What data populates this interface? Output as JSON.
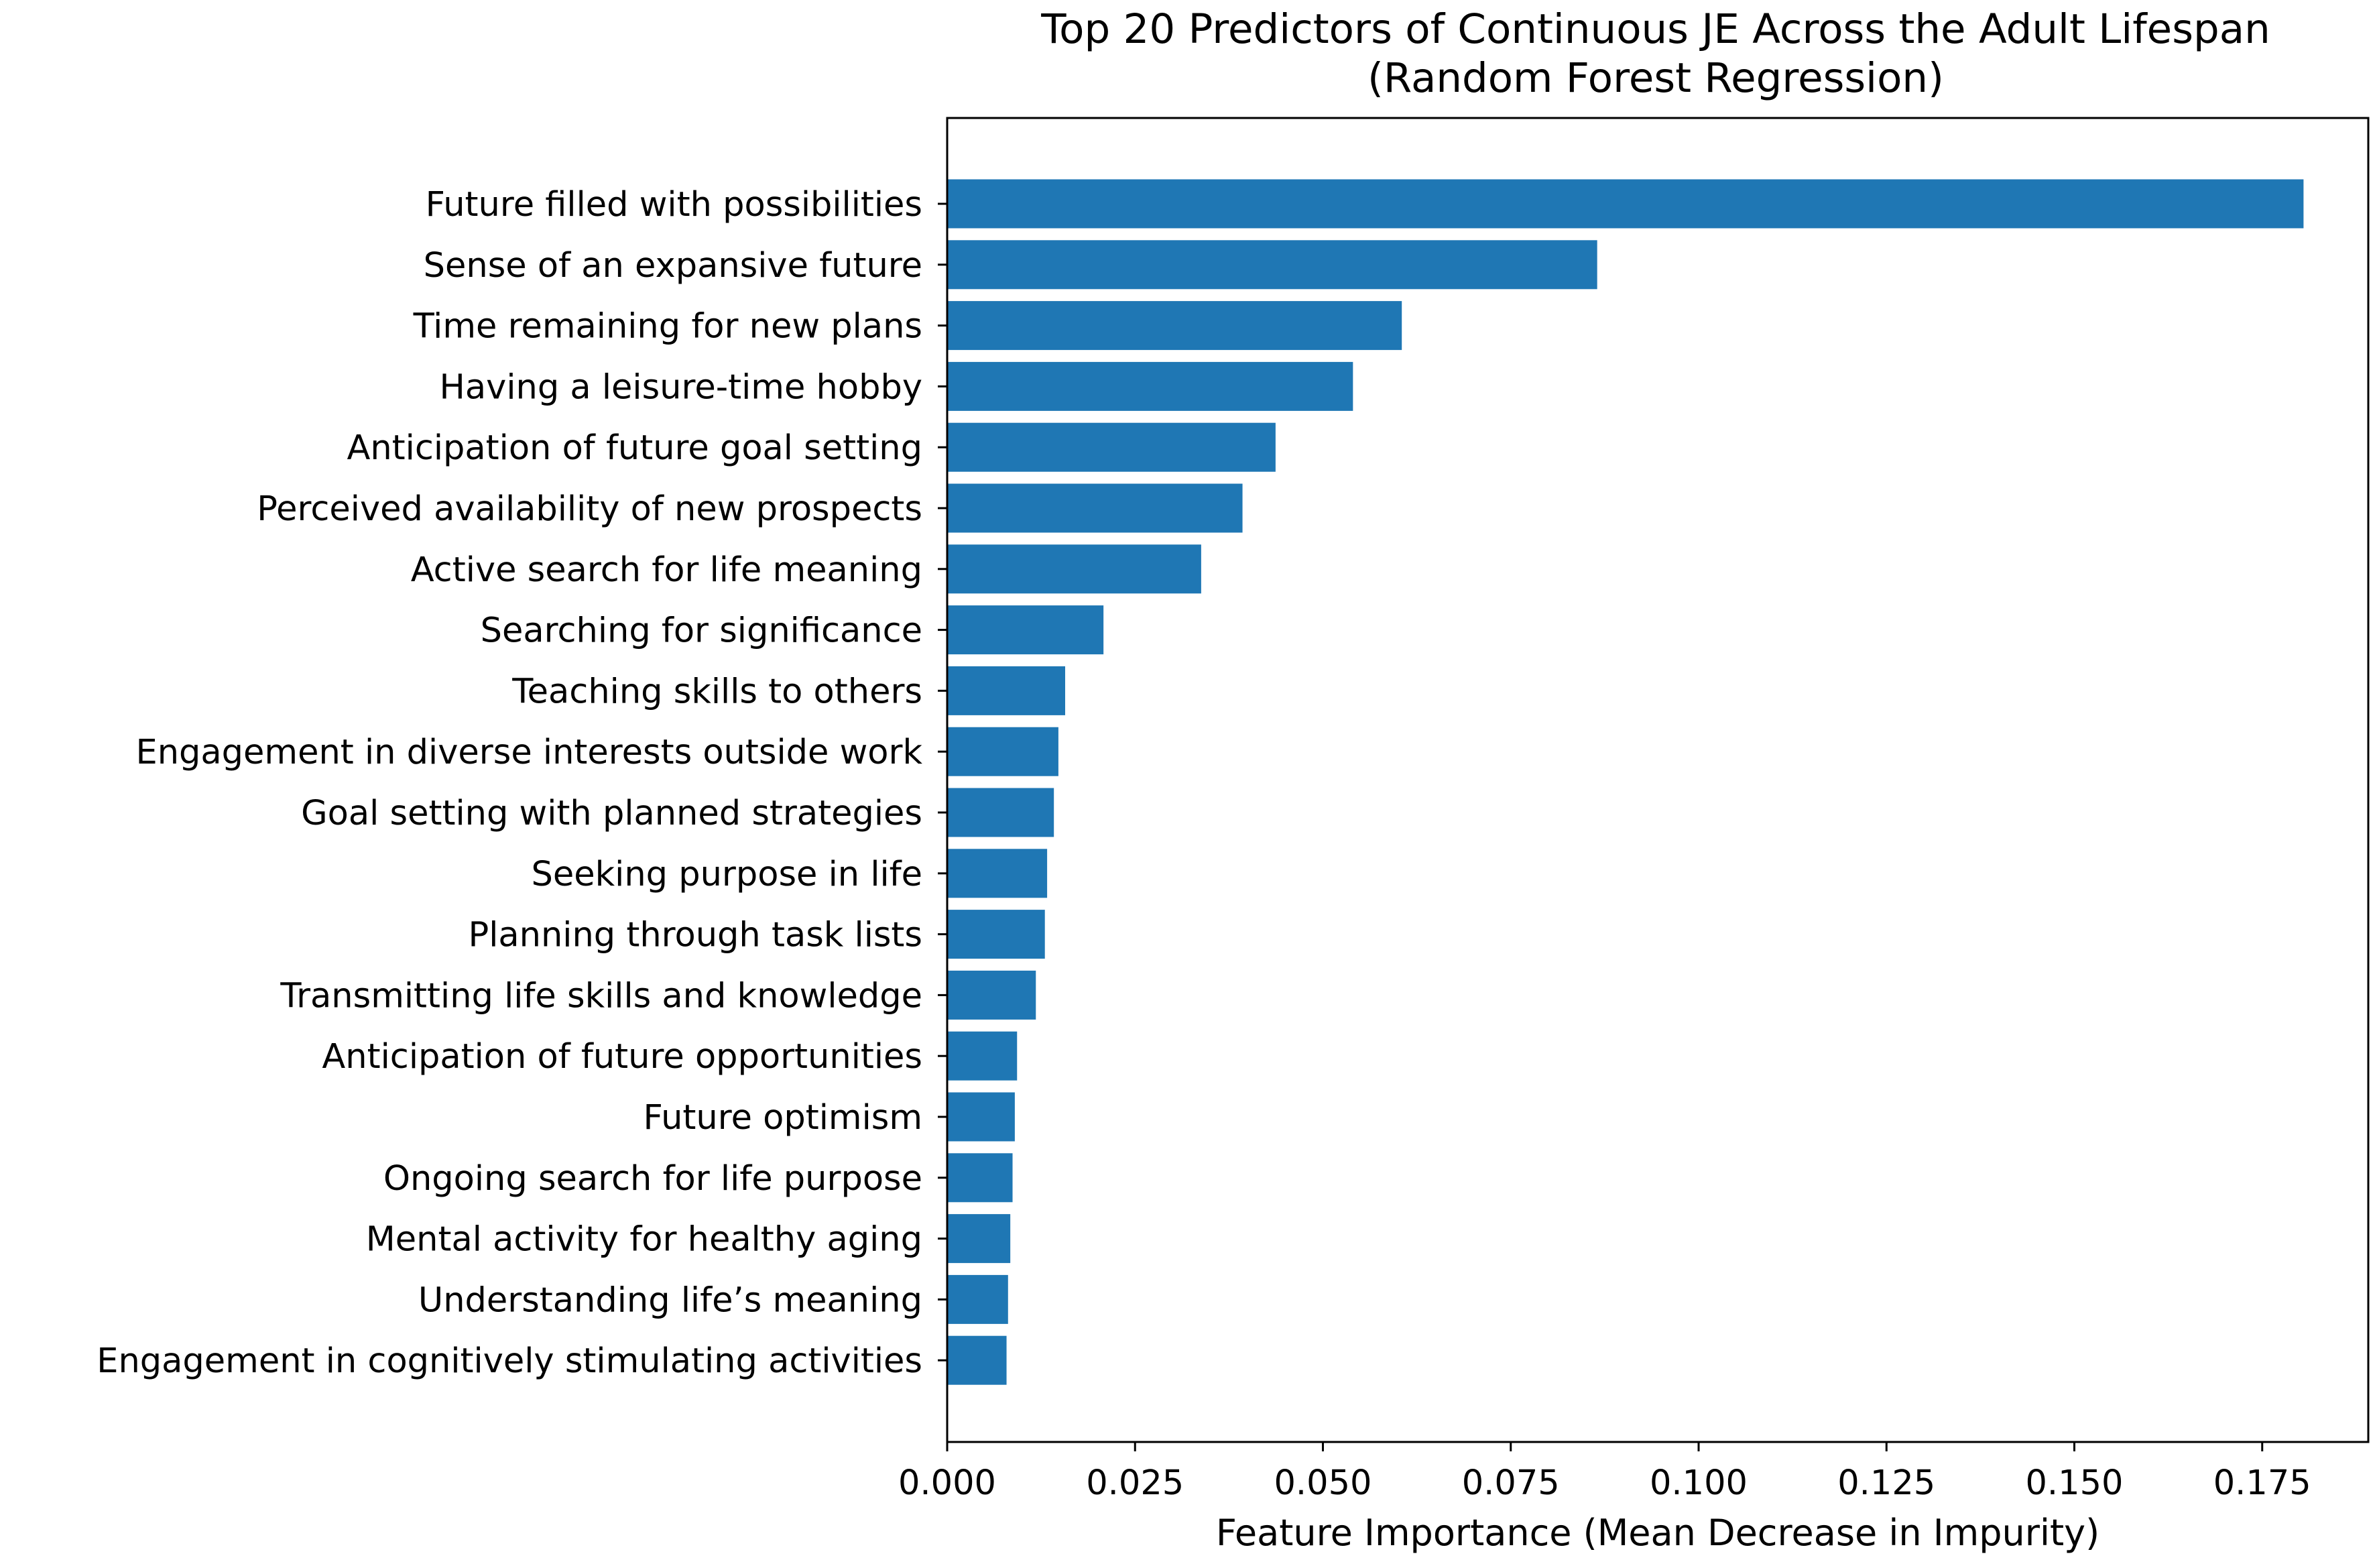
{
  "chart_data": {
    "type": "bar",
    "orientation": "horizontal",
    "title": "Top 20 Predictors of Continuous JE Across the Adult Lifespan",
    "subtitle": "(Random Forest Regression)",
    "xlabel": "Feature Importance (Mean Decrease in Impurity)",
    "ylabel": "",
    "xlim": [
      0.0,
      0.19
    ],
    "xticks": [
      0.0,
      0.025,
      0.05,
      0.075,
      0.1,
      0.125,
      0.15,
      0.175
    ],
    "xtick_labels": [
      "0.000",
      "0.025",
      "0.050",
      "0.075",
      "0.100",
      "0.125",
      "0.150",
      "0.175"
    ],
    "grid": false,
    "legend": "none",
    "bar_color": "#1f77b4",
    "categories": [
      "Future filled with possibilities",
      "Sense of an expansive future",
      "Time remaining for new plans",
      "Having a leisure-time hobby",
      "Anticipation of future goal setting",
      "Perceived availability of new prospects",
      "Active search for life meaning",
      "Searching for significance",
      "Teaching skills to others",
      "Engagement in diverse interests outside work",
      "Goal setting with planned strategies",
      "Seeking purpose in life",
      "Planning through task lists",
      "Transmitting life skills and knowledge",
      "Anticipation of future opportunities",
      "Future optimism",
      "Ongoing search for life purpose",
      "Mental activity for healthy aging",
      "Understanding life’s meaning",
      "Engagement in cognitively stimulating activities"
    ],
    "values": [
      0.1805,
      0.0865,
      0.0605,
      0.054,
      0.0437,
      0.0393,
      0.0338,
      0.0208,
      0.0157,
      0.0148,
      0.0142,
      0.0133,
      0.013,
      0.0118,
      0.0093,
      0.009,
      0.0087,
      0.0084,
      0.0081,
      0.0079
    ]
  }
}
